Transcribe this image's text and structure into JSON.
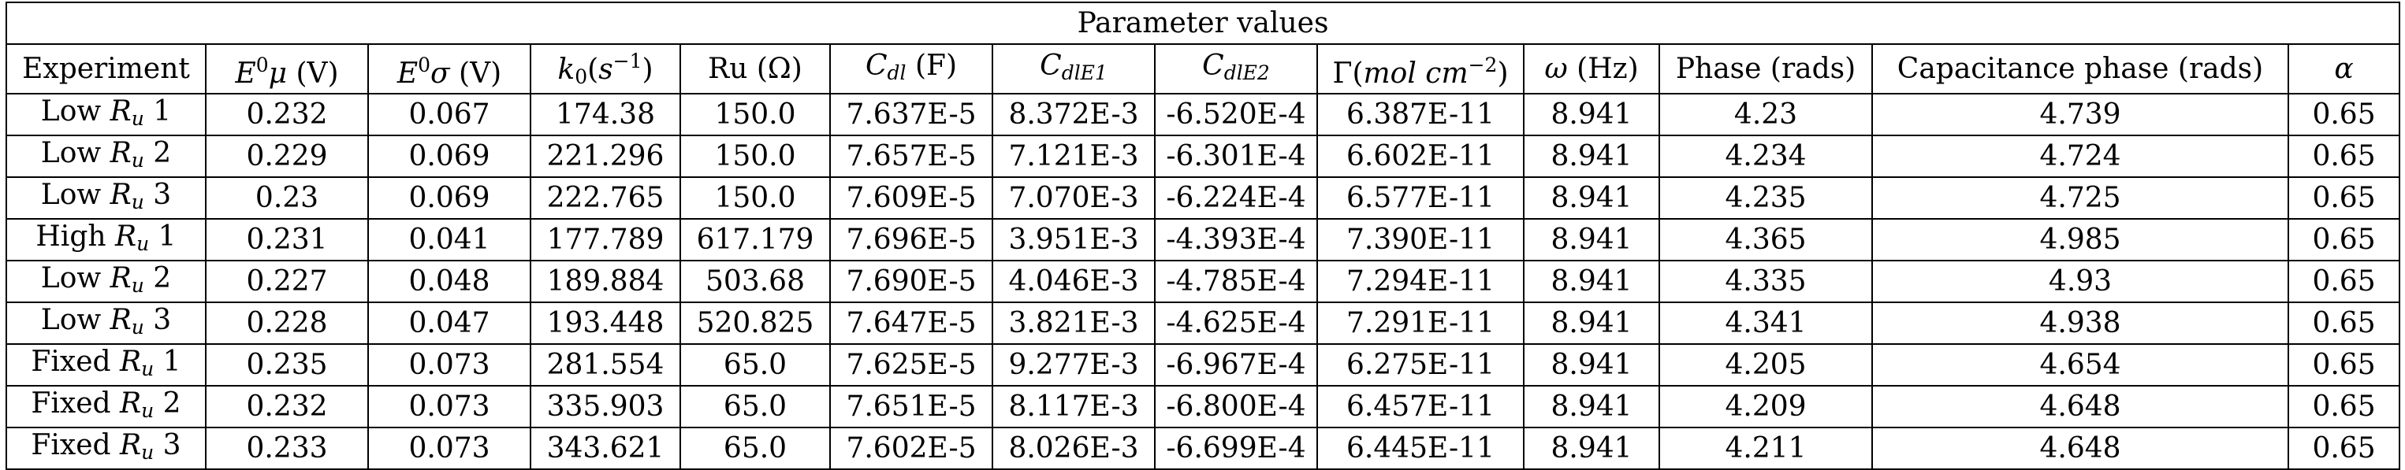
{
  "table": {
    "title": "Parameter values",
    "headers": [
      "Experiment",
      "E0μ (V)",
      "E0σ (V)",
      "k0(s−1)",
      "Ru (Ω)",
      "Cdl (F)",
      "CdlE1",
      "CdlE2",
      "Γ(mol cm−2)",
      "ω (Hz)",
      "Phase (rads)",
      "Capacitance phase (rads)",
      "α"
    ],
    "rows": [
      [
        "Low Ru 1",
        "0.232",
        "0.067",
        "174.38",
        "150.0",
        "7.637E-5",
        "8.372E-3",
        "-6.520E-4",
        "6.387E-11",
        "8.941",
        "4.23",
        "4.739",
        "0.65"
      ],
      [
        "Low Ru 2",
        "0.229",
        "0.069",
        "221.296",
        "150.0",
        "7.657E-5",
        "7.121E-3",
        "-6.301E-4",
        "6.602E-11",
        "8.941",
        "4.234",
        "4.724",
        "0.65"
      ],
      [
        "Low Ru 3",
        "0.23",
        "0.069",
        "222.765",
        "150.0",
        "7.609E-5",
        "7.070E-3",
        "-6.224E-4",
        "6.577E-11",
        "8.941",
        "4.235",
        "4.725",
        "0.65"
      ],
      [
        "High Ru 1",
        "0.231",
        "0.041",
        "177.789",
        "617.179",
        "7.696E-5",
        "3.951E-3",
        "-4.393E-4",
        "7.390E-11",
        "8.941",
        "4.365",
        "4.985",
        "0.65"
      ],
      [
        "Low Ru 2",
        "0.227",
        "0.048",
        "189.884",
        "503.68",
        "7.690E-5",
        "4.046E-3",
        "-4.785E-4",
        "7.294E-11",
        "8.941",
        "4.335",
        "4.93",
        "0.65"
      ],
      [
        "Low Ru 3",
        "0.228",
        "0.047",
        "193.448",
        "520.825",
        "7.647E-5",
        "3.821E-3",
        "-4.625E-4",
        "7.291E-11",
        "8.941",
        "4.341",
        "4.938",
        "0.65"
      ],
      [
        "Fixed Ru 1",
        "0.235",
        "0.073",
        "281.554",
        "65.0",
        "7.625E-5",
        "9.277E-3",
        "-6.967E-4",
        "6.275E-11",
        "8.941",
        "4.205",
        "4.654",
        "0.65"
      ],
      [
        "Fixed Ru 2",
        "0.232",
        "0.073",
        "335.903",
        "65.0",
        "7.651E-5",
        "8.117E-3",
        "-6.800E-4",
        "6.457E-11",
        "8.941",
        "4.209",
        "4.648",
        "0.65"
      ],
      [
        "Fixed Ru 3",
        "0.233",
        "0.073",
        "343.621",
        "65.0",
        "7.602E-5",
        "8.026E-3",
        "-6.699E-4",
        "6.445E-11",
        "8.941",
        "4.211",
        "4.648",
        "0.65"
      ]
    ]
  }
}
